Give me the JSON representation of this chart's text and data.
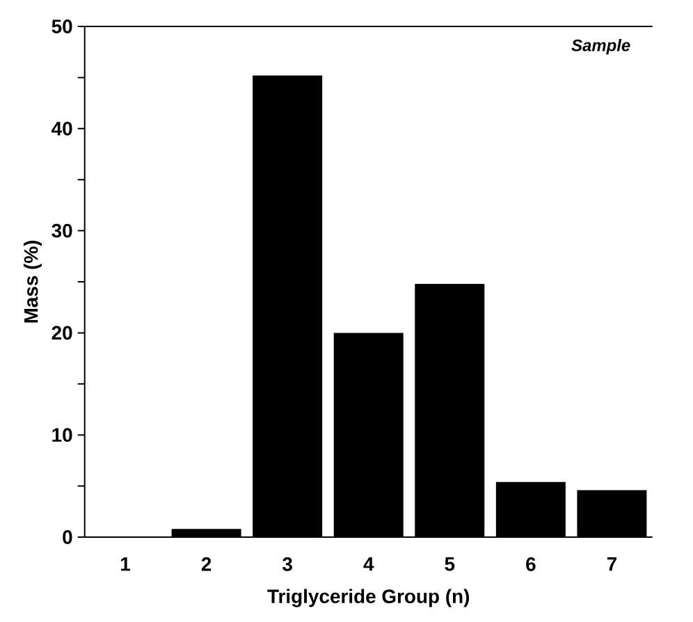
{
  "chart_data": {
    "type": "bar",
    "xlabel": "Triglyceride Group (n)",
    "ylabel": "Mass (%)",
    "categories": [
      "1",
      "2",
      "3",
      "4",
      "5",
      "6",
      "7"
    ],
    "values": [
      0,
      0.8,
      45.2,
      20,
      24.8,
      5.4,
      4.6
    ],
    "color": "#000000",
    "ylim": [
      0,
      50
    ],
    "yticks": [
      0,
      {
        "value": 5,
        "label": null
      },
      10,
      {
        "value": 15,
        "label": null
      },
      20,
      {
        "value": 25,
        "label": null
      },
      30,
      {
        "value": 35,
        "label": null
      },
      40,
      {
        "value": 45,
        "label": null
      },
      50
    ],
    "annotations": [
      "Sample"
    ]
  }
}
